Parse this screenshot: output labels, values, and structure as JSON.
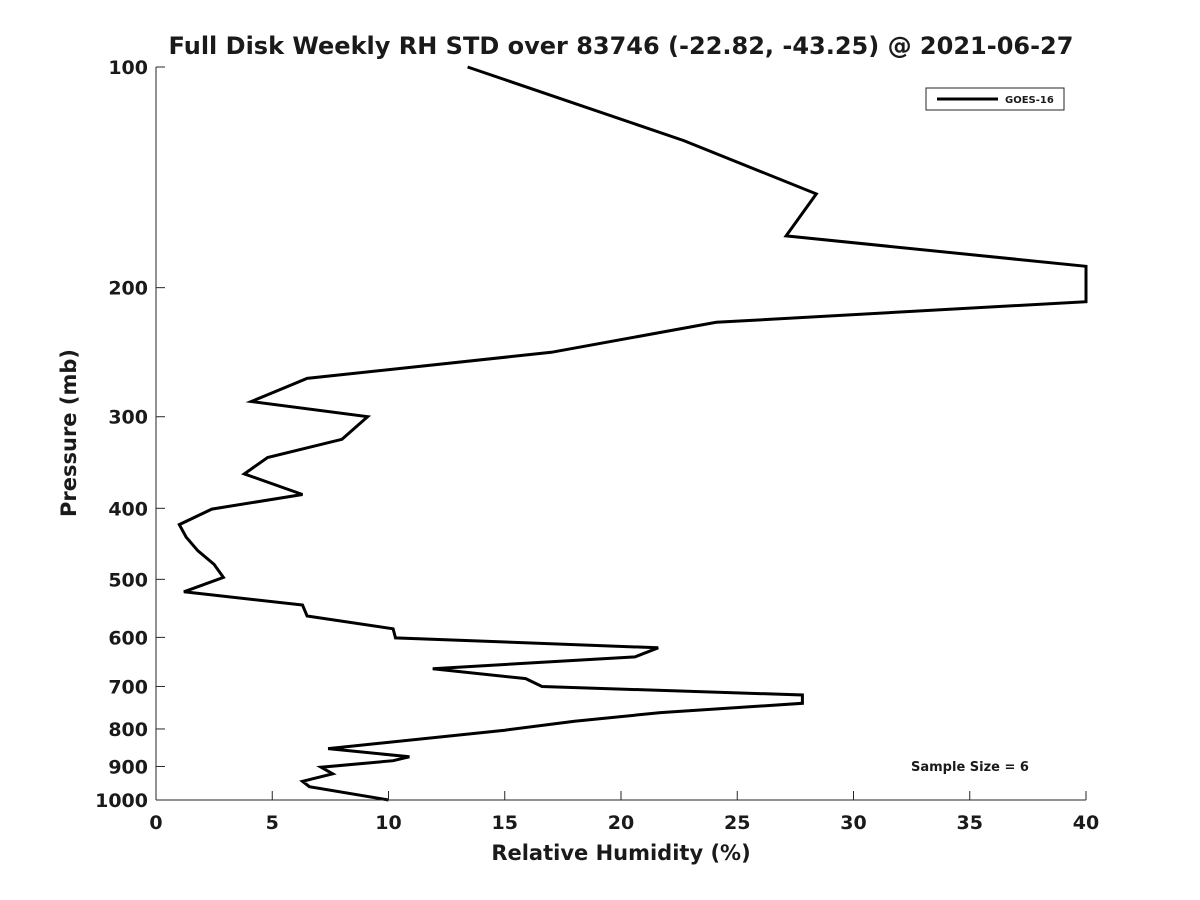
{
  "chart_data": {
    "type": "line",
    "title": "Full Disk Weekly RH STD over 83746 (-22.82, -43.25) @ 2021-06-27",
    "xlabel": "Relative Humidity (%)",
    "ylabel": "Pressure (mb)",
    "xlim": [
      0,
      40
    ],
    "ylim": [
      100,
      1000
    ],
    "y_scale": "log",
    "y_reversed": true,
    "x_ticks": [
      "0",
      "5",
      "10",
      "15",
      "20",
      "25",
      "30",
      "35",
      "40"
    ],
    "y_ticks": [
      "100",
      "200",
      "300",
      "400",
      "500",
      "600",
      "700",
      "800",
      "900",
      "1000"
    ],
    "legend_position": "top-right",
    "annotation": "Sample Size = 6",
    "series": [
      {
        "name": "GOES-16",
        "color": "#000000",
        "points": [
          [
            13.4,
            100
          ],
          [
            22.7,
            126
          ],
          [
            28.4,
            149
          ],
          [
            27.1,
            170
          ],
          [
            40,
            187
          ],
          [
            40,
            209
          ],
          [
            24.1,
            223
          ],
          [
            17.0,
            245
          ],
          [
            6.5,
            266
          ],
          [
            4.1,
            286
          ],
          [
            9.1,
            300
          ],
          [
            8.0,
            322
          ],
          [
            4.8,
            341
          ],
          [
            3.8,
            359
          ],
          [
            6.3,
            383
          ],
          [
            2.4,
            401
          ],
          [
            1.0,
            421
          ],
          [
            1.3,
            438
          ],
          [
            1.8,
            457
          ],
          [
            2.5,
            477
          ],
          [
            2.9,
            497
          ],
          [
            1.2,
            520
          ],
          [
            6.3,
            542
          ],
          [
            6.5,
            561
          ],
          [
            10.2,
            584
          ],
          [
            10.3,
            601
          ],
          [
            21.6,
            620
          ],
          [
            20.6,
            638
          ],
          [
            11.9,
            662
          ],
          [
            15.9,
            683
          ],
          [
            16.6,
            700
          ],
          [
            27.8,
            719
          ],
          [
            27.8,
            738
          ],
          [
            21.7,
            760
          ],
          [
            18.0,
            781
          ],
          [
            15.0,
            803
          ],
          [
            7.4,
            851
          ],
          [
            10.9,
            873
          ],
          [
            10.2,
            884
          ],
          [
            7.1,
            902
          ],
          [
            7.6,
            921
          ],
          [
            6.3,
            943
          ],
          [
            6.6,
            959
          ],
          [
            10.0,
            1000
          ]
        ]
      }
    ]
  }
}
